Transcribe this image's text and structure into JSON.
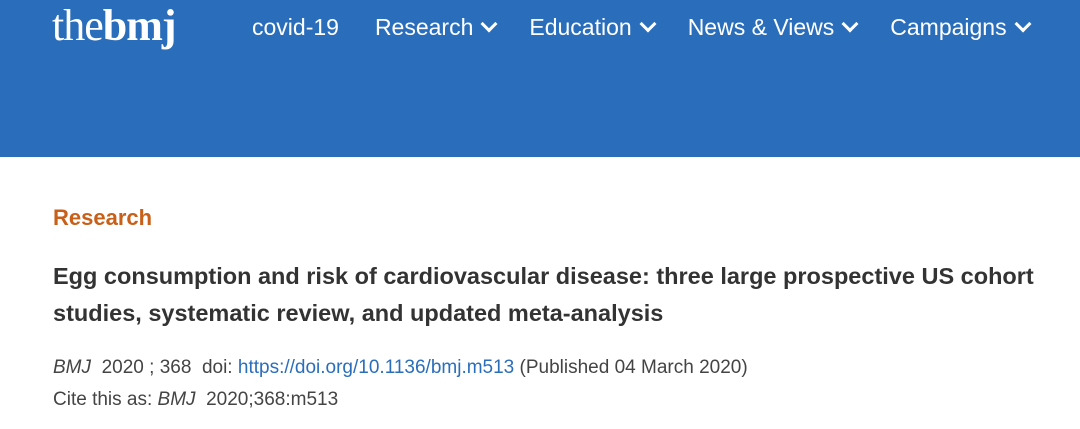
{
  "header": {
    "logo_the": "the",
    "logo_bmj": "bmj",
    "nav": [
      {
        "label": "covid-19",
        "has_dropdown": false
      },
      {
        "label": "Research",
        "has_dropdown": true
      },
      {
        "label": "Education",
        "has_dropdown": true
      },
      {
        "label": "News & Views",
        "has_dropdown": true
      },
      {
        "label": "Campaigns",
        "has_dropdown": true
      }
    ],
    "background_color": "#2a6ebb"
  },
  "article": {
    "section": "Research",
    "title": "Egg consumption and risk of cardiovascular disease: three large prospective US cohort studies, systematic review, and updated meta-analysis",
    "journal": "BMJ",
    "year": "2020",
    "volume": "368",
    "doi_label": "doi:",
    "doi_url": "https://doi.org/10.1136/bmj.m513",
    "published": "(Published 04 March 2020)",
    "cite_label": "Cite this as:",
    "cite_journal": "BMJ",
    "cite_ref": "2020;368:m513"
  }
}
